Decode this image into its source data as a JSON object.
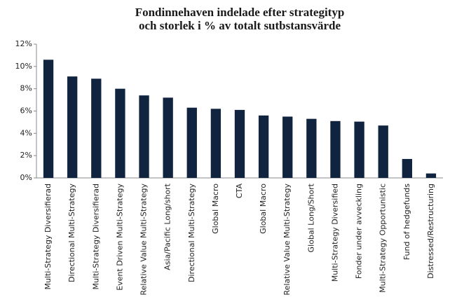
{
  "chart_data": {
    "type": "bar",
    "title": [
      "Fondinnehaven indelade efter strategityp",
      "och storlek i % av totalt sutbstansvärde"
    ],
    "categories": [
      "Multi-Strategy Diversifierad",
      "Directional Multi-Strategy",
      "Multi-Strategy Diversifierad",
      "Event Driven Multi-Strategy",
      "Relative Value Multi-Strategy",
      "Asia/Pacific Long/short",
      "Directional Multi-Strategy",
      "Global Macro",
      "CTA",
      "Global Macro",
      "Relative Value Multi-Strategy",
      "Global Long/Short",
      "Multi-Strategy Diversified",
      "Fonder under avveckling",
      "Multi-Strategy Opportunistic",
      "Fund of hedgefunds",
      "Distressed/Restructuring"
    ],
    "values": [
      10.6,
      9.1,
      8.9,
      8.0,
      7.4,
      7.2,
      6.3,
      6.2,
      6.1,
      5.6,
      5.5,
      5.3,
      5.1,
      5.05,
      4.7,
      1.7,
      0.4
    ],
    "color": "#10243f",
    "ylim": [
      0,
      12
    ],
    "yticks": [
      {
        "value": 0,
        "label": "0%"
      },
      {
        "value": 2,
        "label": "2%"
      },
      {
        "value": 4,
        "label": "4%"
      },
      {
        "value": 6,
        "label": "6%"
      },
      {
        "value": 8,
        "label": "8%"
      },
      {
        "value": 10,
        "label": "10%"
      },
      {
        "value": 12,
        "label": "12%"
      }
    ],
    "grid": false
  }
}
